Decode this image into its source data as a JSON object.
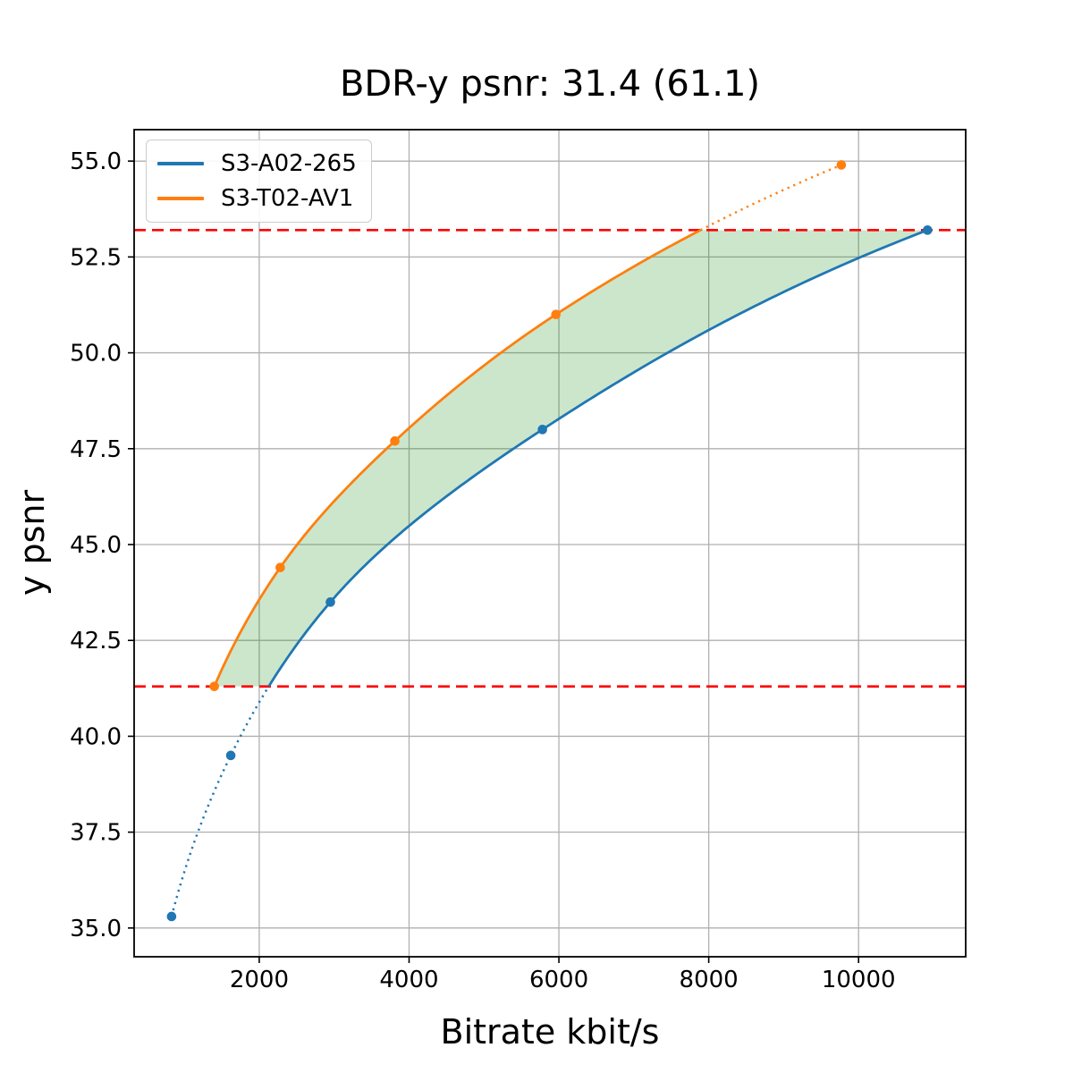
{
  "figure": {
    "background": "#ffffff"
  },
  "chart_data": {
    "type": "line",
    "title": "BDR-y psnr: 31.4 (61.1)",
    "bdr_value": 31.4,
    "bdr_value_secondary": 61.1,
    "xlabel": "Bitrate kbit/s",
    "ylabel": "y psnr",
    "xlim": [
      330,
      11430
    ],
    "ylim": [
      34.25,
      55.82
    ],
    "xticks": [
      2000,
      4000,
      6000,
      8000,
      10000
    ],
    "xtick_labels": [
      "2000",
      "4000",
      "6000",
      "8000",
      "10000"
    ],
    "yticks": [
      35.0,
      37.5,
      40.0,
      42.5,
      45.0,
      47.5,
      50.0,
      52.5,
      55.0
    ],
    "ytick_labels": [
      "35.0",
      "37.5",
      "40.0",
      "42.5",
      "45.0",
      "47.5",
      "50.0",
      "52.5",
      "55.0"
    ],
    "grid": true,
    "grid_color": "#b0b0b0",
    "axis_color": "#000000",
    "legend_position": "upper-left",
    "series": [
      {
        "name": "S3-A02-265",
        "color": "#1f77b4",
        "marker": "circle",
        "x": [
          830,
          1620,
          2950,
          5780,
          10920
        ],
        "y": [
          35.3,
          39.5,
          43.5,
          48.0,
          53.2
        ],
        "dotted_region": "below_overlap"
      },
      {
        "name": "S3-T02-AV1",
        "color": "#ff7f0e",
        "marker": "circle",
        "x": [
          1400,
          2280,
          3810,
          5960,
          9770
        ],
        "y": [
          41.3,
          44.4,
          47.7,
          51.0,
          54.9
        ],
        "dotted_region": "above_overlap"
      }
    ],
    "overlap_psnr_range": [
      41.3,
      53.2
    ],
    "hlines": [
      {
        "y": 41.3,
        "color": "#ff0000",
        "style": "dashed",
        "label": "overlap-lower-bound"
      },
      {
        "y": 53.2,
        "color": "#ff0000",
        "style": "dashed",
        "label": "overlap-upper-bound"
      }
    ],
    "shaded_region": {
      "fill_color": "#008000",
      "fill_opacity": 0.2,
      "description": "BD area between curves within psnr overlap"
    }
  }
}
